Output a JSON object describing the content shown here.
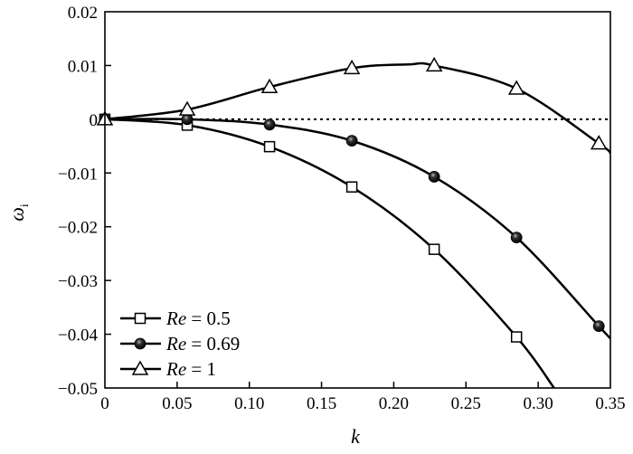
{
  "chart_data": {
    "type": "line",
    "title": "",
    "xlabel": "k",
    "ylabel": "ω_i",
    "ylabel_main": "ω",
    "ylabel_sub": "i",
    "xlim": [
      0,
      0.35
    ],
    "ylim": [
      -0.05,
      0.02
    ],
    "xticks": [
      0,
      0.05,
      0.1,
      0.15,
      0.2,
      0.25,
      0.3,
      0.35
    ],
    "xtick_labels": [
      "0",
      "0.05",
      "0.10",
      "0.15",
      "0.20",
      "0.25",
      "0.30",
      "0.35"
    ],
    "yticks": [
      0.02,
      0.01,
      0,
      -0.01,
      -0.02,
      -0.03,
      -0.04,
      -0.05
    ],
    "ytick_labels": [
      "0.02",
      "0.01",
      "0",
      "−0.01",
      "−0.02",
      "−0.03",
      "−0.04",
      "−0.05"
    ],
    "grid": false,
    "legend_position": "bottom-left",
    "reference_line": {
      "y": 0,
      "style": "dotted"
    },
    "series": [
      {
        "name": "Re = 0.5",
        "name_italic": "Re",
        "name_rest": " = 0.5",
        "marker": "square",
        "x": [
          0,
          0.057,
          0.114,
          0.171,
          0.228,
          0.285
        ],
        "y": [
          0,
          -0.0011,
          -0.0051,
          -0.0126,
          -0.0242,
          -0.0405
        ],
        "curve_x": [
          0,
          0.057,
          0.114,
          0.171,
          0.228,
          0.285,
          0.311
        ],
        "curve_y": [
          0,
          -0.0011,
          -0.0051,
          -0.0126,
          -0.0242,
          -0.0405,
          -0.05
        ]
      },
      {
        "name": "Re = 0.69",
        "name_italic": "Re",
        "name_rest": " = 0.69",
        "marker": "sphere",
        "x": [
          0,
          0.057,
          0.114,
          0.171,
          0.228,
          0.285,
          0.342
        ],
        "y": [
          0,
          0,
          -0.001,
          -0.004,
          -0.0107,
          -0.022,
          -0.0385
        ],
        "curve_x": [
          0,
          0.057,
          0.114,
          0.171,
          0.228,
          0.285,
          0.342,
          0.35
        ],
        "curve_y": [
          0,
          0,
          -0.001,
          -0.004,
          -0.0107,
          -0.022,
          -0.0385,
          -0.0408
        ]
      },
      {
        "name": "Re = 1",
        "name_italic": "Re",
        "name_rest": " = 1",
        "marker": "triangle",
        "x": [
          0,
          0.057,
          0.114,
          0.171,
          0.228,
          0.285,
          0.342
        ],
        "y": [
          0,
          0.0018,
          0.006,
          0.0095,
          0.01,
          0.0057,
          -0.0045
        ],
        "curve_x": [
          0,
          0.057,
          0.114,
          0.171,
          0.21,
          0.228,
          0.285,
          0.342,
          0.35
        ],
        "curve_y": [
          0,
          0.0018,
          0.006,
          0.0095,
          0.0102,
          0.01,
          0.0057,
          -0.0045,
          -0.0063
        ]
      }
    ]
  }
}
